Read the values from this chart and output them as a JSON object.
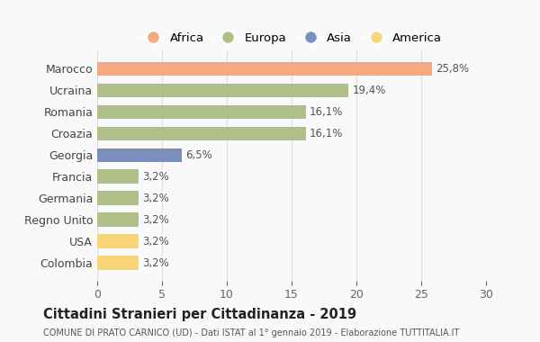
{
  "categories": [
    "Marocco",
    "Ucraina",
    "Romania",
    "Croazia",
    "Georgia",
    "Francia",
    "Germania",
    "Regno Unito",
    "USA",
    "Colombia"
  ],
  "values": [
    25.8,
    19.4,
    16.1,
    16.1,
    6.5,
    3.2,
    3.2,
    3.2,
    3.2,
    3.2
  ],
  "labels": [
    "25,8%",
    "19,4%",
    "16,1%",
    "16,1%",
    "6,5%",
    "3,2%",
    "3,2%",
    "3,2%",
    "3,2%",
    "3,2%"
  ],
  "colors": [
    "#F4A97F",
    "#AEBF8A",
    "#AEBF8A",
    "#AEBF8A",
    "#7B8FBF",
    "#AEBF8A",
    "#AEBF8A",
    "#AEBF8A",
    "#F7D57A",
    "#F7D57A"
  ],
  "legend_labels": [
    "Africa",
    "Europa",
    "Asia",
    "America"
  ],
  "legend_colors": [
    "#F4A97F",
    "#AEBF8A",
    "#7B8FBF",
    "#F7D57A"
  ],
  "title": "Cittadini Stranieri per Cittadinanza - 2019",
  "subtitle": "COMUNE DI PRATO CARNICO (UD) - Dati ISTAT al 1° gennaio 2019 - Elaborazione TUTTITALIA.IT",
  "xlim": [
    0,
    30
  ],
  "xticks": [
    0,
    5,
    10,
    15,
    20,
    25,
    30
  ],
  "background_color": "#f9f9f9",
  "grid_color": "#dddddd"
}
